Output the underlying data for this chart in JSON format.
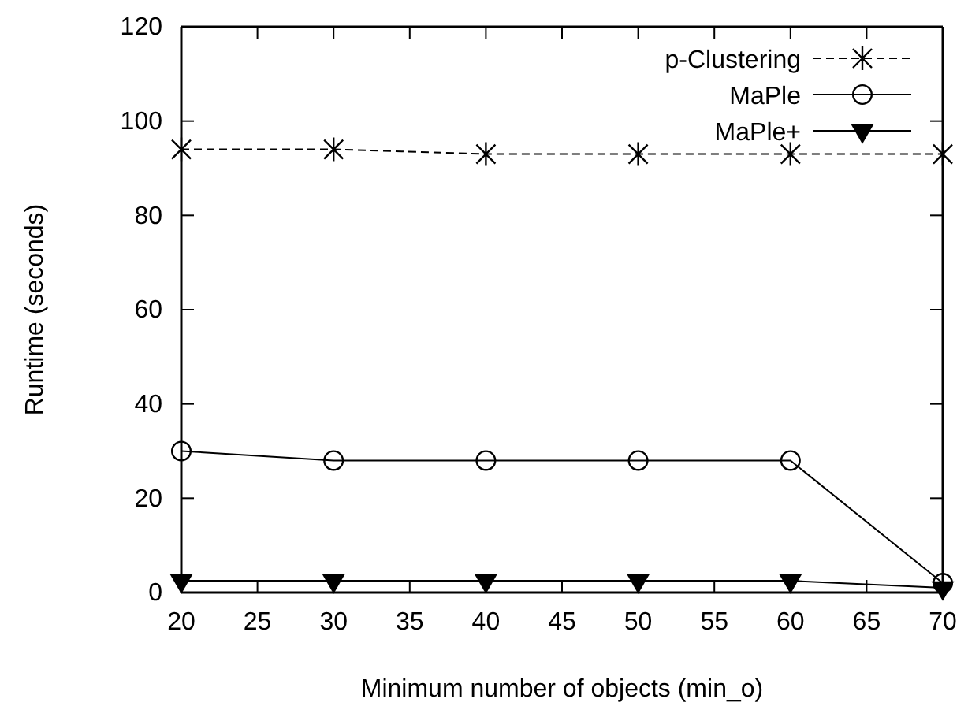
{
  "chart_data": {
    "type": "line",
    "xlabel": "Minimum number of objects (min_o)",
    "ylabel": "Runtime (seconds)",
    "x": [
      20,
      30,
      40,
      50,
      60,
      70
    ],
    "xlim": [
      20,
      70
    ],
    "xticks": [
      20,
      25,
      30,
      35,
      40,
      45,
      50,
      55,
      60,
      65,
      70
    ],
    "ylim": [
      0,
      120
    ],
    "yticks": [
      0,
      20,
      40,
      60,
      80,
      100,
      120
    ],
    "grid": false,
    "legend": "top right",
    "series": [
      {
        "name": "p-Clustering",
        "color": "#000000",
        "marker": "cross",
        "line_style": "dashed",
        "values": [
          94,
          94,
          93,
          93,
          93,
          93
        ]
      },
      {
        "name": "MaPle",
        "color": "#000000",
        "marker": "circle",
        "line_style": "solid",
        "values": [
          30,
          28,
          28,
          28,
          28,
          2
        ]
      },
      {
        "name": "MaPle+",
        "color": "#000000",
        "marker": "triangle",
        "line_style": "solid",
        "values": [
          2.5,
          2.5,
          2.5,
          2.5,
          2.5,
          1
        ]
      }
    ]
  }
}
